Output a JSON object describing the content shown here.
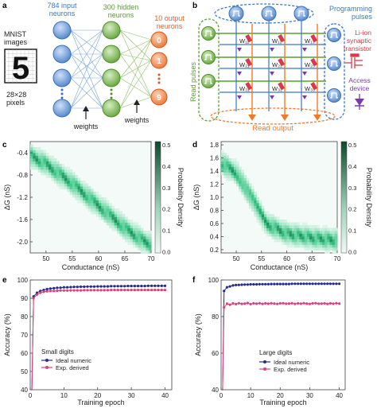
{
  "panel_labels": {
    "a": "a",
    "b": "b",
    "c": "c",
    "d": "d",
    "e": "e",
    "f": "f"
  },
  "panel_a": {
    "input_label": "784 input\nneurons",
    "input_label_l1": "784 input",
    "input_label_l2": "neurons",
    "hidden_label_l1": "300 hidden",
    "hidden_label_l2": "neurons",
    "output_label_l1": "10 output",
    "output_label_l2": "neurons",
    "mnist_l1": "MNIST",
    "mnist_l2": "images",
    "digit": "5",
    "size_l1": "28×28",
    "size_l2": "pixels",
    "weights_1": "weights",
    "weights_2": "weights",
    "outputs": [
      "0",
      "1",
      "9"
    ],
    "colors": {
      "input": "#5b8fd6",
      "hidden": "#6fb040",
      "output": "#f07a3a",
      "input_label": "#3a78c8",
      "hidden_label": "#5a9a30",
      "output_label": "#e0622a"
    }
  },
  "panel_b": {
    "read_pulses": "Read pulses",
    "programming_l1": "Programming",
    "programming_l2": "pulses",
    "transistor_l1": "Li-ion",
    "transistor_l2": "synaptic",
    "transistor_l3": "transistor",
    "access_l1": "Access",
    "access_l2": "device",
    "read_output": "Read output",
    "weights": [
      "W₁₁",
      "W₁₂",
      "W₁₃",
      "W₂₁",
      "W₂₂",
      "W₂₃",
      "W₃₁",
      "W₃₂",
      "W₃₃"
    ],
    "colors": {
      "read": "#5aa030",
      "program": "#3a78c8",
      "transistor": "#d83a4a",
      "access": "#7a3aa8",
      "output": "#f07a2a"
    }
  },
  "panel_c": {
    "xlabel": "Conductance (nS)",
    "ylabel": "ΔG (nS)",
    "cbar_label": "Probability Density",
    "x_ticks": [
      "50",
      "55",
      "60",
      "65",
      "70"
    ],
    "y_ticks": [
      "-0.4",
      "-0.8",
      "-1.2",
      "-1.6",
      "-2.0"
    ],
    "cbar_ticks": [
      "0.5",
      "0.4",
      "0.3",
      "0.2",
      "0.1",
      "0.0"
    ]
  },
  "panel_d": {
    "xlabel": "Conductance (nS)",
    "ylabel": "ΔG (nS)",
    "cbar_label": "Probability Density",
    "x_ticks": [
      "50",
      "55",
      "60",
      "65",
      "70"
    ],
    "y_ticks": [
      "1.8",
      "1.6",
      "1.4",
      "1.2",
      "1.0",
      "0.8",
      "0.6",
      "0.4",
      "0.2"
    ],
    "cbar_ticks": [
      "0.5",
      "0.4",
      "0.3",
      "0.2",
      "0.1",
      "0.0"
    ]
  },
  "panel_e": {
    "xlabel": "Training epoch",
    "ylabel": "Accuracy (%)",
    "annotation": "Small digits",
    "legend": [
      "Ideal numeric",
      "Exp. derived"
    ],
    "x_ticks": [
      "0",
      "10",
      "20",
      "30",
      "40"
    ],
    "y_ticks": [
      "40",
      "50",
      "60",
      "70",
      "80",
      "90",
      "100"
    ]
  },
  "panel_f": {
    "xlabel": "Training epoch",
    "ylabel": "Accuracy (%)",
    "annotation_l1": "Large digits",
    "legend": [
      "Ideal numeric",
      "Exp. derived"
    ],
    "x_ticks": [
      "0",
      "10",
      "20",
      "30",
      "40"
    ],
    "y_ticks": [
      "40",
      "60",
      "80",
      "100"
    ]
  },
  "chart_data": [
    {
      "type": "heatmap",
      "panel": "c",
      "xlabel": "Conductance (nS)",
      "ylabel": "ΔG (nS)",
      "xlim": [
        47,
        70
      ],
      "ylim": [
        -2.2,
        -0.2
      ],
      "colorbar": {
        "label": "Probability Density",
        "range": [
          0,
          0.5
        ]
      },
      "ridge": {
        "x": [
          47,
          50,
          55,
          60,
          65,
          68,
          70
        ],
        "y": [
          -0.45,
          -0.6,
          -0.95,
          -1.35,
          -1.75,
          -1.95,
          -2.05
        ]
      }
    },
    {
      "type": "heatmap",
      "panel": "d",
      "xlabel": "Conductance (nS)",
      "ylabel": "ΔG (nS)",
      "xlim": [
        47,
        70
      ],
      "ylim": [
        0.2,
        1.8
      ],
      "colorbar": {
        "label": "Probability Density",
        "range": [
          0,
          0.5
        ]
      },
      "ridge": {
        "x": [
          47,
          50,
          53,
          56,
          60,
          65,
          70
        ],
        "y": [
          1.5,
          1.35,
          1.0,
          0.62,
          0.48,
          0.42,
          0.38
        ]
      }
    },
    {
      "type": "line",
      "panel": "e",
      "xlabel": "Training epoch",
      "ylabel": "Accuracy (%)",
      "xlim": [
        0,
        42
      ],
      "ylim": [
        40,
        100
      ],
      "x": [
        1,
        2,
        3,
        4,
        5,
        6,
        7,
        8,
        9,
        10,
        11,
        12,
        13,
        14,
        15,
        16,
        17,
        18,
        19,
        20,
        21,
        22,
        23,
        24,
        25,
        26,
        27,
        28,
        29,
        30,
        31,
        32,
        33,
        34,
        35,
        36,
        37,
        38,
        39,
        40
      ],
      "series": [
        {
          "name": "Ideal numeric",
          "color": "#2a2a8a",
          "values": [
            91,
            93,
            94,
            94.5,
            95,
            95.3,
            95.5,
            95.7,
            95.8,
            96,
            96,
            96.1,
            96.2,
            96.2,
            96.3,
            96.3,
            96.4,
            96.4,
            96.4,
            96.5,
            96.5,
            96.5,
            96.5,
            96.6,
            96.6,
            96.6,
            96.6,
            96.6,
            96.7,
            96.7,
            96.7,
            96.7,
            96.7,
            96.7,
            96.8,
            96.8,
            96.8,
            96.8,
            96.8,
            96.8
          ]
        },
        {
          "name": "Exp. derived",
          "color": "#e0407a",
          "values": [
            90,
            92,
            93,
            93.5,
            93.8,
            94,
            94,
            94.1,
            94.2,
            94.2,
            94.2,
            94.3,
            94.3,
            94.3,
            94.3,
            94.4,
            94.4,
            94.4,
            94.4,
            94.4,
            94.4,
            94.4,
            94.4,
            94.5,
            94.5,
            94.5,
            94.5,
            94.5,
            94.5,
            94.5,
            94.5,
            94.5,
            94.5,
            94.5,
            94.5,
            94.5,
            94.5,
            94.5,
            94.5,
            94.5
          ]
        }
      ],
      "legend_position": "bottom-right"
    },
    {
      "type": "line",
      "panel": "f",
      "xlabel": "Training epoch",
      "ylabel": "Accuracy (%)",
      "xlim": [
        0,
        42
      ],
      "ylim": [
        40,
        100
      ],
      "x": [
        1,
        2,
        3,
        4,
        5,
        6,
        7,
        8,
        9,
        10,
        11,
        12,
        13,
        14,
        15,
        16,
        17,
        18,
        19,
        20,
        21,
        22,
        23,
        24,
        25,
        26,
        27,
        28,
        29,
        30,
        31,
        32,
        33,
        34,
        35,
        36,
        37,
        38,
        39,
        40
      ],
      "series": [
        {
          "name": "Ideal numeric",
          "color": "#2a2a8a",
          "values": [
            94,
            96,
            96.5,
            97,
            97.2,
            97.3,
            97.4,
            97.5,
            97.5,
            97.6,
            97.6,
            97.6,
            97.7,
            97.7,
            97.7,
            97.7,
            97.8,
            97.8,
            97.8,
            97.8,
            97.8,
            97.8,
            97.8,
            97.9,
            97.9,
            97.9,
            97.9,
            97.9,
            97.9,
            97.9,
            97.9,
            97.9,
            97.9,
            97.9,
            97.9,
            97.9,
            97.9,
            97.9,
            97.9,
            97.9
          ]
        },
        {
          "name": "Exp. derived",
          "color": "#e0407a",
          "values": [
            85,
            87,
            86.5,
            87.2,
            86.8,
            87.3,
            86.9,
            87.1,
            87.4,
            86.8,
            87.2,
            87,
            87.3,
            86.9,
            87.2,
            87,
            87.3,
            87.1,
            86.9,
            87.2,
            87.3,
            87,
            87.1,
            87.3,
            86.9,
            87.2,
            87,
            87.3,
            87.1,
            86.9,
            87.2,
            87.3,
            87,
            87.1,
            87.2,
            86.9,
            87.2,
            87,
            87.3,
            87.1
          ]
        }
      ],
      "legend_position": "bottom-right"
    }
  ]
}
